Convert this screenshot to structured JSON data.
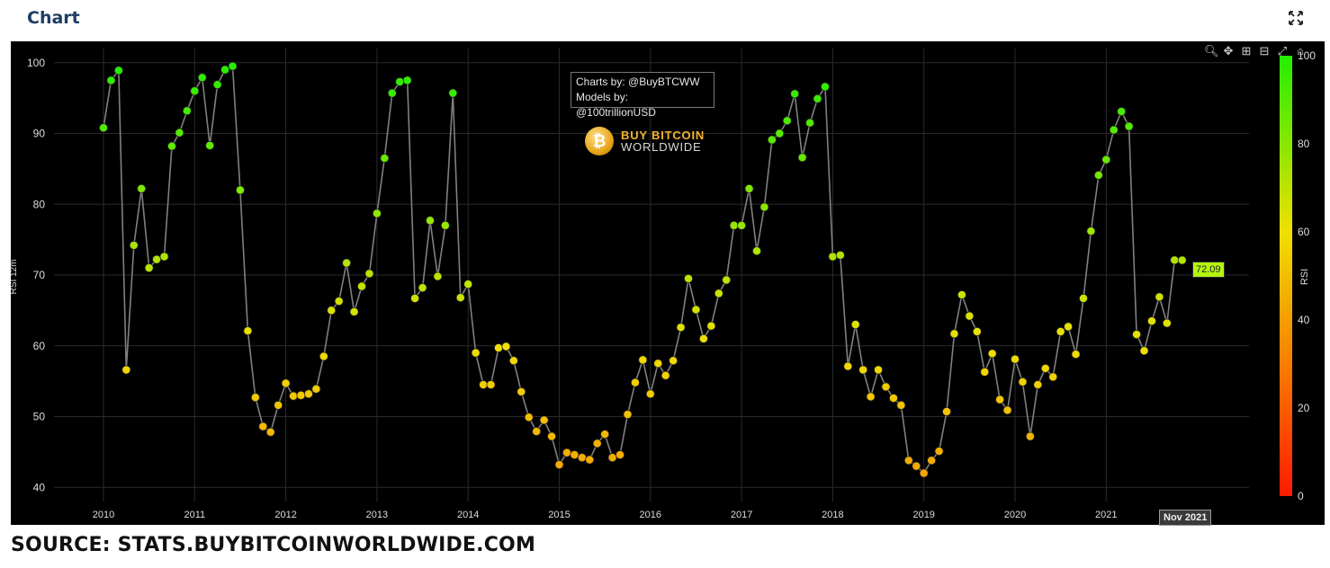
{
  "header": {
    "title": "Chart"
  },
  "footer": {
    "source": "SOURCE: STATS.BUYBITCOINWORLDWIDE.COM"
  },
  "watermark": {
    "line1": "Charts by: @BuyBTCWW",
    "line2": "Models by: @100trillionUSD"
  },
  "logo": {
    "line1": "BUY BITCOIN",
    "line2": "WORLDWIDE"
  },
  "hover": {
    "value_label": "72.09",
    "x_label": "Nov 2021"
  },
  "toolbar": {
    "icons": [
      "zoom-icon",
      "pan-icon",
      "zoom-in-icon",
      "zoom-out-icon",
      "autoscale-icon",
      "reset-icon"
    ]
  },
  "colors": {
    "background": "#000000",
    "line": "#808080",
    "grid": "#2a2a2a",
    "high": "#22ee00",
    "mid": "#f0e000",
    "low": "#ff1a00"
  },
  "chart_data": {
    "type": "scatter",
    "xlabel": "",
    "ylabel": "RSI 12m",
    "ylim": [
      38,
      102
    ],
    "y_ticks": [
      "40",
      "50",
      "60",
      "70",
      "80",
      "90",
      "100"
    ],
    "x_ticks": [
      "2010",
      "2011",
      "2012",
      "2013",
      "2014",
      "2015",
      "2016",
      "2017",
      "2018",
      "2019",
      "2020",
      "2021"
    ],
    "colorbar": {
      "label": "RSI",
      "ticks": [
        "0",
        "20",
        "40",
        "60",
        "80",
        "100"
      ],
      "range": [
        0,
        100
      ]
    },
    "grid": true,
    "start": "2010-01",
    "points": [
      [
        "2010-01",
        90.8
      ],
      [
        "2010-02",
        97.5
      ],
      [
        "2010-03",
        98.9
      ],
      [
        "2010-04",
        56.6
      ],
      [
        "2010-05",
        74.2
      ],
      [
        "2010-06",
        82.2
      ],
      [
        "2010-07",
        71.0
      ],
      [
        "2010-08",
        72.2
      ],
      [
        "2010-09",
        72.6
      ],
      [
        "2010-10",
        88.2
      ],
      [
        "2010-11",
        90.1
      ],
      [
        "2010-12",
        93.2
      ],
      [
        "2011-01",
        96.0
      ],
      [
        "2011-02",
        97.9
      ],
      [
        "2011-03",
        88.3
      ],
      [
        "2011-04",
        96.9
      ],
      [
        "2011-05",
        99.0
      ],
      [
        "2011-06",
        99.5
      ],
      [
        "2011-07",
        82.0
      ],
      [
        "2011-08",
        62.1
      ],
      [
        "2011-09",
        52.7
      ],
      [
        "2011-10",
        48.6
      ],
      [
        "2011-11",
        47.8
      ],
      [
        "2011-12",
        51.6
      ],
      [
        "2012-01",
        54.7
      ],
      [
        "2012-02",
        52.9
      ],
      [
        "2012-03",
        53.0
      ],
      [
        "2012-04",
        53.2
      ],
      [
        "2012-05",
        53.9
      ],
      [
        "2012-06",
        58.5
      ],
      [
        "2012-07",
        65.0
      ],
      [
        "2012-08",
        66.3
      ],
      [
        "2012-09",
        71.7
      ],
      [
        "2012-10",
        64.8
      ],
      [
        "2012-11",
        68.4
      ],
      [
        "2012-12",
        70.2
      ],
      [
        "2013-01",
        78.7
      ],
      [
        "2013-02",
        86.5
      ],
      [
        "2013-03",
        95.7
      ],
      [
        "2013-04",
        97.3
      ],
      [
        "2013-05",
        97.5
      ],
      [
        "2013-06",
        66.7
      ],
      [
        "2013-07",
        68.2
      ],
      [
        "2013-08",
        77.7
      ],
      [
        "2013-09",
        69.8
      ],
      [
        "2013-10",
        77.0
      ],
      [
        "2013-11",
        95.7
      ],
      [
        "2013-12",
        66.8
      ],
      [
        "2014-01",
        68.7
      ],
      [
        "2014-02",
        59.0
      ],
      [
        "2014-03",
        54.5
      ],
      [
        "2014-04",
        54.5
      ],
      [
        "2014-05",
        59.7
      ],
      [
        "2014-06",
        59.9
      ],
      [
        "2014-07",
        57.9
      ],
      [
        "2014-08",
        53.5
      ],
      [
        "2014-09",
        49.9
      ],
      [
        "2014-10",
        47.9
      ],
      [
        "2014-11",
        49.5
      ],
      [
        "2014-12",
        47.2
      ],
      [
        "2015-01",
        43.2
      ],
      [
        "2015-02",
        44.9
      ],
      [
        "2015-03",
        44.6
      ],
      [
        "2015-04",
        44.2
      ],
      [
        "2015-05",
        43.9
      ],
      [
        "2015-06",
        46.2
      ],
      [
        "2015-07",
        47.5
      ],
      [
        "2015-08",
        44.2
      ],
      [
        "2015-09",
        44.6
      ],
      [
        "2015-10",
        50.3
      ],
      [
        "2015-11",
        54.8
      ],
      [
        "2015-12",
        58.0
      ],
      [
        "2016-01",
        53.2
      ],
      [
        "2016-02",
        57.5
      ],
      [
        "2016-03",
        55.8
      ],
      [
        "2016-04",
        57.9
      ],
      [
        "2016-05",
        62.6
      ],
      [
        "2016-06",
        69.5
      ],
      [
        "2016-07",
        65.1
      ],
      [
        "2016-08",
        61.0
      ],
      [
        "2016-09",
        62.8
      ],
      [
        "2016-10",
        67.4
      ],
      [
        "2016-11",
        69.3
      ],
      [
        "2016-12",
        77.0
      ],
      [
        "2017-01",
        77.0
      ],
      [
        "2017-02",
        82.2
      ],
      [
        "2017-03",
        73.4
      ],
      [
        "2017-04",
        79.6
      ],
      [
        "2017-05",
        89.1
      ],
      [
        "2017-06",
        90.0
      ],
      [
        "2017-07",
        91.8
      ],
      [
        "2017-08",
        95.6
      ],
      [
        "2017-09",
        86.6
      ],
      [
        "2017-10",
        91.5
      ],
      [
        "2017-11",
        94.9
      ],
      [
        "2017-12",
        96.6
      ],
      [
        "2018-01",
        72.6
      ],
      [
        "2018-02",
        72.8
      ],
      [
        "2018-03",
        57.1
      ],
      [
        "2018-04",
        63.0
      ],
      [
        "2018-05",
        56.6
      ],
      [
        "2018-06",
        52.8
      ],
      [
        "2018-07",
        56.6
      ],
      [
        "2018-08",
        54.2
      ],
      [
        "2018-09",
        52.6
      ],
      [
        "2018-10",
        51.6
      ],
      [
        "2018-11",
        43.8
      ],
      [
        "2018-12",
        43.0
      ],
      [
        "2019-01",
        42.0
      ],
      [
        "2019-02",
        43.8
      ],
      [
        "2019-03",
        45.1
      ],
      [
        "2019-04",
        50.7
      ],
      [
        "2019-05",
        61.7
      ],
      [
        "2019-06",
        67.2
      ],
      [
        "2019-07",
        64.2
      ],
      [
        "2019-08",
        62.0
      ],
      [
        "2019-09",
        56.3
      ],
      [
        "2019-10",
        58.9
      ],
      [
        "2019-11",
        52.4
      ],
      [
        "2019-12",
        50.9
      ],
      [
        "2020-01",
        58.1
      ],
      [
        "2020-02",
        54.9
      ],
      [
        "2020-03",
        47.2
      ],
      [
        "2020-04",
        54.5
      ],
      [
        "2020-05",
        56.8
      ],
      [
        "2020-06",
        55.6
      ],
      [
        "2020-07",
        62.0
      ],
      [
        "2020-08",
        62.7
      ],
      [
        "2020-09",
        58.8
      ],
      [
        "2020-10",
        66.7
      ],
      [
        "2020-11",
        76.2
      ],
      [
        "2020-12",
        84.1
      ],
      [
        "2021-01",
        86.3
      ],
      [
        "2021-02",
        90.5
      ],
      [
        "2021-03",
        93.1
      ],
      [
        "2021-04",
        91.0
      ],
      [
        "2021-05",
        61.6
      ],
      [
        "2021-06",
        59.3
      ],
      [
        "2021-07",
        63.5
      ],
      [
        "2021-08",
        66.9
      ],
      [
        "2021-09",
        63.2
      ],
      [
        "2021-10",
        72.1
      ],
      [
        "2021-11",
        72.09
      ]
    ]
  }
}
